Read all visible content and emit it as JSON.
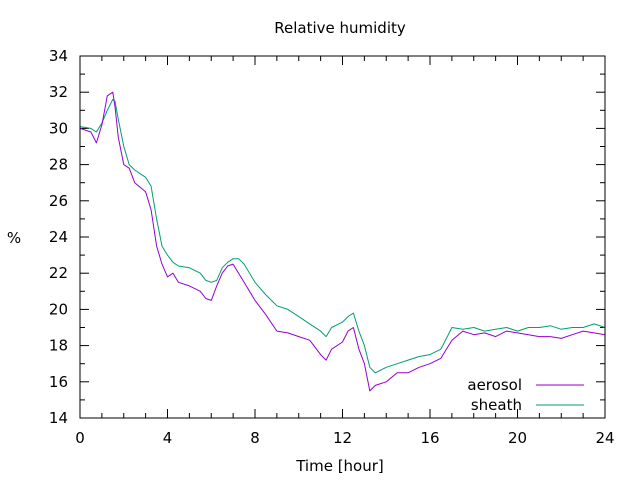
{
  "chart_data": {
    "type": "line",
    "title": "Relative humidity",
    "xlabel": "Time [hour]",
    "ylabel": "%",
    "xlim": [
      0,
      24
    ],
    "ylim": [
      14,
      34
    ],
    "x_ticks": [
      "0",
      "4",
      "8",
      "12",
      "16",
      "20",
      "24"
    ],
    "y_ticks": [
      "14",
      "16",
      "18",
      "20",
      "22",
      "24",
      "26",
      "28",
      "30",
      "32",
      "34"
    ],
    "grid": false,
    "legend_position": "bottom-right",
    "series": [
      {
        "name": "aerosol",
        "color": "#9400d3",
        "x": [
          0,
          0.5,
          0.75,
          1.0,
          1.25,
          1.5,
          1.6,
          1.75,
          2.0,
          2.25,
          2.5,
          3.0,
          3.25,
          3.5,
          3.75,
          4.0,
          4.25,
          4.5,
          5.0,
          5.5,
          5.75,
          6.0,
          6.25,
          6.5,
          6.75,
          7.0,
          7.25,
          7.5,
          8.0,
          8.5,
          9.0,
          9.5,
          10.0,
          10.5,
          11.0,
          11.25,
          11.5,
          12.0,
          12.25,
          12.5,
          12.75,
          13.0,
          13.25,
          13.5,
          14.0,
          14.5,
          15.0,
          15.5,
          16.0,
          16.5,
          17.0,
          17.5,
          18.0,
          18.5,
          19.0,
          19.5,
          20.0,
          20.5,
          21.0,
          21.5,
          22.0,
          22.5,
          23.0,
          23.5,
          24.0
        ],
        "y": [
          30.0,
          29.8,
          29.2,
          30.2,
          31.8,
          32.0,
          31.2,
          29.5,
          28.0,
          27.8,
          27.0,
          26.5,
          25.5,
          23.5,
          22.5,
          21.8,
          22.0,
          21.5,
          21.3,
          21.0,
          20.6,
          20.5,
          21.3,
          22.0,
          22.4,
          22.5,
          22.0,
          21.5,
          20.5,
          19.7,
          18.8,
          18.7,
          18.5,
          18.3,
          17.5,
          17.2,
          17.8,
          18.2,
          18.8,
          19.0,
          17.8,
          17.0,
          15.5,
          15.8,
          16.0,
          16.5,
          16.5,
          16.8,
          17.0,
          17.3,
          18.3,
          18.8,
          18.6,
          18.7,
          18.5,
          18.8,
          18.7,
          18.6,
          18.5,
          18.5,
          18.4,
          18.6,
          18.8,
          18.7,
          18.6
        ]
      },
      {
        "name": "sheath",
        "color": "#009e73",
        "x": [
          0,
          0.5,
          0.75,
          1.0,
          1.25,
          1.5,
          1.6,
          1.75,
          2.0,
          2.25,
          2.5,
          3.0,
          3.25,
          3.5,
          3.75,
          4.0,
          4.25,
          4.5,
          5.0,
          5.5,
          5.75,
          6.0,
          6.25,
          6.5,
          6.75,
          7.0,
          7.25,
          7.5,
          8.0,
          8.5,
          9.0,
          9.5,
          10.0,
          10.5,
          11.0,
          11.25,
          11.5,
          12.0,
          12.25,
          12.5,
          12.75,
          13.0,
          13.25,
          13.5,
          14.0,
          14.5,
          15.0,
          15.5,
          16.0,
          16.5,
          17.0,
          17.5,
          18.0,
          18.5,
          19.0,
          19.5,
          20.0,
          20.5,
          21.0,
          21.5,
          22.0,
          22.5,
          23.0,
          23.5,
          24.0
        ],
        "y": [
          30.1,
          30.0,
          29.8,
          30.3,
          31.0,
          31.6,
          31.5,
          30.5,
          29.0,
          28.0,
          27.7,
          27.3,
          26.8,
          25.0,
          23.5,
          23.0,
          22.6,
          22.4,
          22.3,
          22.0,
          21.6,
          21.5,
          21.6,
          22.3,
          22.6,
          22.8,
          22.8,
          22.5,
          21.5,
          20.8,
          20.2,
          20.0,
          19.6,
          19.2,
          18.8,
          18.5,
          19.0,
          19.3,
          19.6,
          19.8,
          18.8,
          18.0,
          16.8,
          16.5,
          16.8,
          17.0,
          17.2,
          17.4,
          17.5,
          17.8,
          19.0,
          18.9,
          19.0,
          18.8,
          18.9,
          19.0,
          18.8,
          19.0,
          19.0,
          19.1,
          18.9,
          19.0,
          19.0,
          19.2,
          19.0
        ]
      }
    ]
  }
}
